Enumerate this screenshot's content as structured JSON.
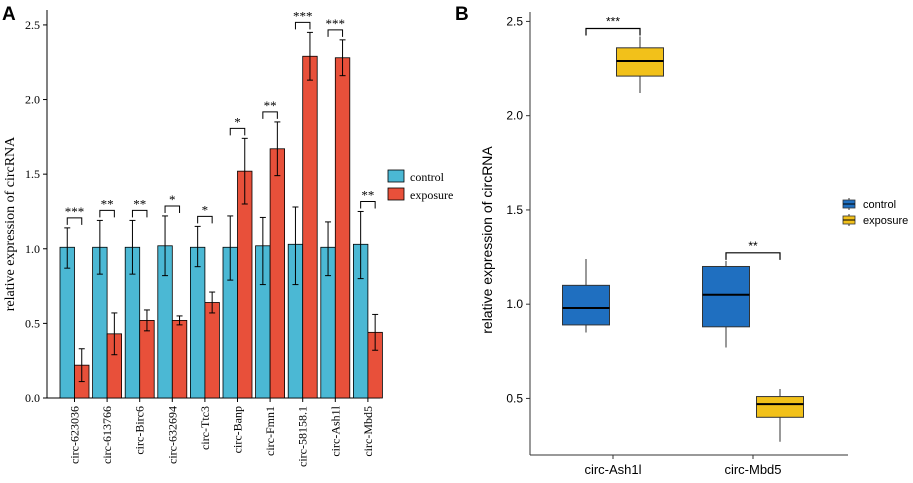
{
  "colors": {
    "control_a": "#4bb8d4",
    "exposure_a": "#e8503a",
    "control_b": "#1f6fc0",
    "exposure_b": "#f2c11a",
    "axis": "#000000",
    "grid_text": "#000000"
  },
  "chart_data": [
    {
      "panel": "A",
      "type": "bar",
      "title": "",
      "xlabel": "",
      "ylabel": "relative expression of circRNA",
      "ylim": [
        0,
        2.6
      ],
      "yticks": [
        "0.0",
        "0.5",
        "1.0",
        "1.5",
        "2.0",
        "2.5"
      ],
      "ytick_values": [
        0,
        0.5,
        1.0,
        1.5,
        2.0,
        2.5
      ],
      "categories": [
        "circ-623036",
        "circ-613766",
        "circ-Birc6",
        "circ-632694",
        "circ-Ttc3",
        "circ-Banp",
        "circ-Fmn1",
        "circ-58158.1",
        "circ-Ash1l",
        "circ-Mbd5"
      ],
      "series": [
        {
          "name": "control",
          "values": [
            1.01,
            1.01,
            1.01,
            1.02,
            1.01,
            1.01,
            1.02,
            1.03,
            1.01,
            1.03
          ],
          "err_lo": [
            0.87,
            0.83,
            0.83,
            0.82,
            0.88,
            0.79,
            0.76,
            0.76,
            0.82,
            0.8
          ],
          "err_hi": [
            1.14,
            1.19,
            1.19,
            1.22,
            1.15,
            1.22,
            1.21,
            1.28,
            1.18,
            1.25
          ]
        },
        {
          "name": "exposure",
          "values": [
            0.22,
            0.43,
            0.52,
            0.52,
            0.64,
            1.52,
            1.67,
            2.29,
            2.28,
            0.44
          ],
          "err_lo": [
            0.11,
            0.29,
            0.45,
            0.49,
            0.57,
            1.3,
            1.49,
            2.13,
            2.16,
            0.32
          ],
          "err_hi": [
            0.33,
            0.57,
            0.59,
            0.55,
            0.71,
            1.74,
            1.85,
            2.45,
            2.4,
            0.56
          ]
        }
      ],
      "significance": [
        "***",
        "**",
        "**",
        "*",
        "*",
        "*",
        "**",
        "***",
        "***",
        "**"
      ],
      "legend": [
        "control",
        "exposure"
      ],
      "legend_position": "right"
    },
    {
      "panel": "B",
      "type": "box",
      "title": "",
      "xlabel": "",
      "ylabel": "relative expression of circRNA",
      "ylim": [
        0.2,
        2.55
      ],
      "yticks": [
        "0.5",
        "1.0",
        "1.5",
        "2.0",
        "2.5"
      ],
      "ytick_values": [
        0.5,
        1.0,
        1.5,
        2.0,
        2.5
      ],
      "categories": [
        "circ-Ash1l",
        "circ-Mbd5"
      ],
      "series": [
        {
          "name": "control",
          "boxes": [
            {
              "min": 0.85,
              "q1": 0.89,
              "median": 0.98,
              "q3": 1.1,
              "max": 1.24
            },
            {
              "min": 0.77,
              "q1": 0.88,
              "median": 1.05,
              "q3": 1.2,
              "max": 1.23
            }
          ]
        },
        {
          "name": "exposure",
          "boxes": [
            {
              "min": 2.12,
              "q1": 2.21,
              "median": 2.29,
              "q3": 2.36,
              "max": 2.42
            },
            {
              "min": 0.27,
              "q1": 0.4,
              "median": 0.47,
              "q3": 0.51,
              "max": 0.55
            }
          ]
        }
      ],
      "significance": [
        "***",
        "**"
      ],
      "legend": [
        "control",
        "exposure"
      ],
      "legend_position": "right"
    }
  ],
  "panel_labels": [
    "A",
    "B"
  ]
}
